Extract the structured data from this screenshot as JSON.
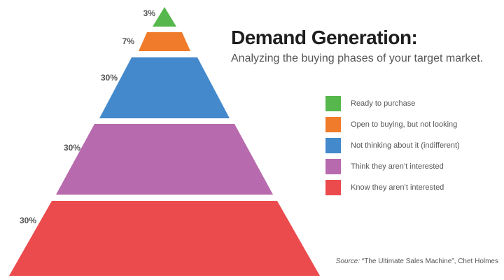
{
  "chart_data": {
    "type": "pyramid",
    "title": "Demand Generation:",
    "subtitle": "Analyzing the buying phases of your target market.",
    "tiers": [
      {
        "label": "Ready to purchase",
        "percent": "3%",
        "value": 3,
        "color": "#56b84c"
      },
      {
        "label": "Open to buying, but not looking",
        "percent": "7%",
        "value": 7,
        "color": "#f07b2a"
      },
      {
        "label": "Not thinking about it (indifferent)",
        "percent": "30%",
        "value": 30,
        "color": "#4489cc"
      },
      {
        "label": "Think they aren’t interested",
        "percent": "30%",
        "value": 30,
        "color": "#b86aae"
      },
      {
        "label": "Know they aren’t interested",
        "percent": "30%",
        "value": 30,
        "color": "#ec4b4e"
      }
    ],
    "source_label": "Source:",
    "source_text": " “The Ultimate Sales Machine”, Chet Holmes"
  }
}
